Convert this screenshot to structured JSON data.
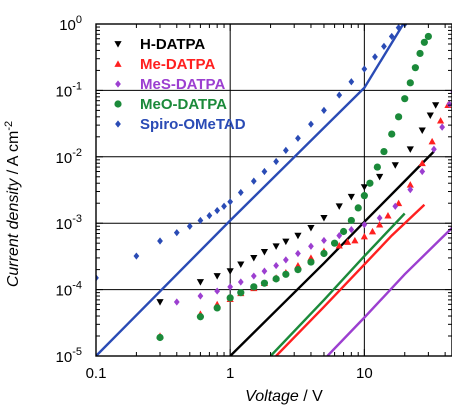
{
  "chart_data": {
    "type": "scatter",
    "x_scale": "log",
    "y_scale": "log",
    "xlim": [
      0.1,
      45
    ],
    "ylim": [
      1e-05,
      1
    ],
    "grid": true,
    "legend_position": "top-left",
    "xlabel": "Voltage",
    "xlabel_unit": "V",
    "ylabel": "Current density",
    "ylabel_unit": "A cm",
    "ylabel_unit_exponent": "-2",
    "x_ticks": [
      {
        "value": 0.1,
        "label": "0.1"
      },
      {
        "value": 1,
        "label": "1"
      },
      {
        "value": 10,
        "label": "10"
      }
    ],
    "y_ticks": [
      {
        "value": 1e-05,
        "base": "10",
        "exp": "-5"
      },
      {
        "value": 0.0001,
        "base": "10",
        "exp": "-4"
      },
      {
        "value": 0.001,
        "base": "10",
        "exp": "-3"
      },
      {
        "value": 0.01,
        "base": "10",
        "exp": "-2"
      },
      {
        "value": 0.1,
        "base": "10",
        "exp": "-1"
      },
      {
        "value": 1,
        "base": "10",
        "exp": "0"
      }
    ],
    "series": [
      {
        "name": "H-DATPA",
        "color": "#000000",
        "marker": "triangle-down",
        "points": [
          [
            0.3,
            6.5e-05
          ],
          [
            0.6,
            0.00013
          ],
          [
            0.8,
            0.00016
          ],
          [
            1.0,
            0.00019
          ],
          [
            1.2,
            0.00024
          ],
          [
            1.5,
            0.0003
          ],
          [
            1.8,
            0.00037
          ],
          [
            2.2,
            0.00045
          ],
          [
            2.6,
            0.00053
          ],
          [
            3.2,
            0.00065
          ],
          [
            4.0,
            0.00085
          ],
          [
            5,
            0.0012
          ],
          [
            6.5,
            0.0018
          ],
          [
            8,
            0.0025
          ],
          [
            10,
            0.0035
          ],
          [
            13,
            0.005
          ],
          [
            17,
            0.0075
          ],
          [
            22,
            0.013
          ],
          [
            27,
            0.025
          ],
          [
            31,
            0.042
          ],
          [
            34,
            0.06
          ]
        ],
        "fit_line": [
          [
            1.0,
            1e-05
          ],
          [
            5,
            0.00025
          ],
          [
            10,
            0.00105
          ],
          [
            20,
            0.0043
          ],
          [
            33,
            0.012
          ]
        ]
      },
      {
        "name": "Me-DATPA",
        "color": "#ff2020",
        "marker": "triangle-up",
        "points": [
          [
            0.3,
            2e-05
          ],
          [
            0.6,
            4.3e-05
          ],
          [
            0.8,
            6e-05
          ],
          [
            1.0,
            7.2e-05
          ],
          [
            1.2,
            8.8e-05
          ],
          [
            1.5,
            0.000105
          ],
          [
            1.8,
            0.000125
          ],
          [
            2.2,
            0.00015
          ],
          [
            2.6,
            0.00018
          ],
          [
            3.2,
            0.00023
          ],
          [
            4.0,
            0.0003
          ],
          [
            5,
            0.00038
          ],
          [
            6.5,
            0.00046
          ],
          [
            7.5,
            0.00052
          ],
          [
            8.5,
            0.00055
          ],
          [
            10,
            0.00063
          ],
          [
            11.5,
            0.00075
          ],
          [
            13,
            0.00095
          ],
          [
            15,
            0.0013
          ],
          [
            18,
            0.002
          ],
          [
            22,
            0.0038
          ],
          [
            27,
            0.008
          ],
          [
            32,
            0.017
          ],
          [
            37,
            0.035
          ],
          [
            42,
            0.06
          ]
        ],
        "fit_line": [
          [
            2.2,
            1e-05
          ],
          [
            5,
            5.5e-05
          ],
          [
            10,
            0.00024
          ],
          [
            16,
            0.00065
          ],
          [
            28,
            0.0019
          ]
        ]
      },
      {
        "name": "MeS-DATPA",
        "color": "#9c3fd0",
        "marker": "diamond",
        "points": [
          [
            0.4,
            6.5e-05
          ],
          [
            0.6,
            8e-05
          ],
          [
            0.8,
            9.5e-05
          ],
          [
            1.0,
            0.00011
          ],
          [
            1.2,
            0.00013
          ],
          [
            1.5,
            0.00016
          ],
          [
            1.8,
            0.00019
          ],
          [
            2.2,
            0.00023
          ],
          [
            2.6,
            0.00028
          ],
          [
            3.2,
            0.00035
          ],
          [
            4.0,
            0.00045
          ],
          [
            5,
            0.00055
          ],
          [
            6.5,
            0.00065
          ],
          [
            8,
            0.0008
          ],
          [
            10,
            0.00095
          ],
          [
            13,
            0.0012
          ],
          [
            17,
            0.0018
          ],
          [
            22,
            0.0032
          ],
          [
            27,
            0.006
          ],
          [
            33,
            0.013
          ],
          [
            38,
            0.028
          ],
          [
            43,
            0.062
          ],
          [
            46,
            0.095
          ]
        ],
        "fit_line": [
          [
            5.3,
            1e-05
          ],
          [
            10,
            3.8e-05
          ],
          [
            20,
            0.00017
          ],
          [
            45,
            0.00085
          ]
        ]
      },
      {
        "name": "MeO-DATPA",
        "color": "#1b8a3a",
        "marker": "circle",
        "points": [
          [
            0.3,
            1.9e-05
          ],
          [
            0.6,
            3.9e-05
          ],
          [
            0.8,
            5.3e-05
          ],
          [
            1.0,
            7.5e-05
          ],
          [
            1.2,
            9e-05
          ],
          [
            1.5,
            0.00011
          ],
          [
            1.8,
            0.000125
          ],
          [
            2.2,
            0.000145
          ],
          [
            2.6,
            0.00017
          ],
          [
            3.2,
            0.0002
          ],
          [
            4.0,
            0.00026
          ],
          [
            5,
            0.00035
          ],
          [
            6,
            0.0005
          ],
          [
            7,
            0.00075
          ],
          [
            8,
            0.0011
          ],
          [
            9,
            0.0017
          ],
          [
            10,
            0.0026
          ],
          [
            11,
            0.004
          ],
          [
            12.5,
            0.007
          ],
          [
            14,
            0.012
          ],
          [
            16,
            0.022
          ],
          [
            18,
            0.04
          ],
          [
            20,
            0.075
          ],
          [
            22,
            0.13
          ],
          [
            24,
            0.22
          ],
          [
            26,
            0.36
          ],
          [
            28,
            0.53
          ],
          [
            30,
            0.65
          ]
        ],
        "fit_line": [
          [
            2.0,
            1e-05
          ],
          [
            5,
            7e-05
          ],
          [
            10,
            0.00032
          ],
          [
            20,
            0.0014
          ]
        ]
      },
      {
        "name": "Spiro-OMeTAD",
        "color": "#2a4bb5",
        "marker": "diamond",
        "points": [
          [
            0.1,
            0.00015
          ],
          [
            0.2,
            0.00032
          ],
          [
            0.3,
            0.00054
          ],
          [
            0.4,
            0.00072
          ],
          [
            0.5,
            0.0009
          ],
          [
            0.6,
            0.0011
          ],
          [
            0.7,
            0.0013
          ],
          [
            0.8,
            0.00155
          ],
          [
            0.9,
            0.0018
          ],
          [
            1.0,
            0.0021
          ],
          [
            1.2,
            0.0029
          ],
          [
            1.5,
            0.0043
          ],
          [
            1.8,
            0.006
          ],
          [
            2.2,
            0.0085
          ],
          [
            2.6,
            0.0125
          ],
          [
            3.2,
            0.019
          ],
          [
            4.0,
            0.031
          ],
          [
            5,
            0.05
          ],
          [
            6.5,
            0.085
          ],
          [
            8,
            0.135
          ],
          [
            10,
            0.21
          ],
          [
            12,
            0.32
          ],
          [
            14,
            0.46
          ],
          [
            16,
            0.65
          ],
          [
            18,
            0.88
          ],
          [
            20,
            1.0
          ]
        ],
        "fit_line": [
          [
            0.1,
            1e-05
          ],
          [
            1,
            0.0011
          ],
          [
            10,
            0.11
          ],
          [
            19.5,
            1.0
          ]
        ]
      }
    ]
  }
}
